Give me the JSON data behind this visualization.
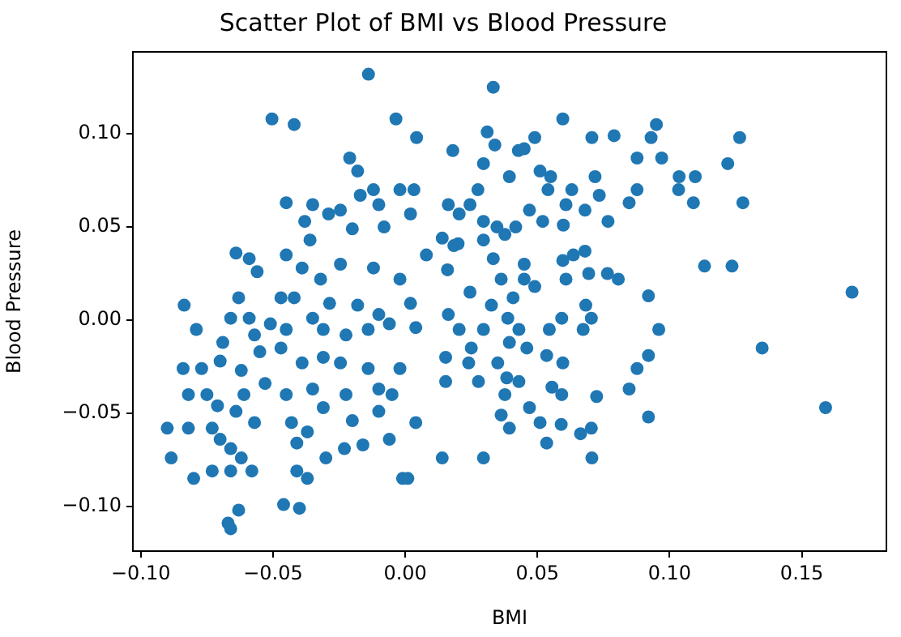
{
  "chart_data": {
    "type": "scatter",
    "title": "Scatter Plot of BMI vs Blood Pressure",
    "xlabel": "BMI",
    "ylabel": "Blood Pressure",
    "grid": false,
    "legend": false,
    "marker": "circle",
    "xlim": [
      -0.103,
      0.182
    ],
    "ylim": [
      -0.124,
      0.144
    ],
    "xticks": [
      {
        "value": -0.1,
        "label": "−0.10"
      },
      {
        "value": -0.05,
        "label": "−0.05"
      },
      {
        "value": 0,
        "label": "0.00"
      },
      {
        "value": 0.05,
        "label": "0.05"
      },
      {
        "value": 0.1,
        "label": "0.10"
      },
      {
        "value": 0.15,
        "label": "0.15"
      }
    ],
    "yticks": [
      {
        "value": -0.1,
        "label": "−0.10"
      },
      {
        "value": -0.05,
        "label": "−0.05"
      },
      {
        "value": 0,
        "label": "0.00"
      },
      {
        "value": 0.05,
        "label": "0.05"
      },
      {
        "value": 0.1,
        "label": "0.10"
      }
    ],
    "series": [
      {
        "color": "#1f77b4",
        "x": [
          -0.0139,
          -0.0504,
          -0.042,
          -0.0035,
          0.0043,
          0.018,
          -0.021,
          -0.018,
          -0.017,
          -0.012,
          -0.045,
          -0.035,
          -0.029,
          -0.0245,
          -0.01,
          -0.002,
          0.0033,
          0.002,
          -0.008,
          -0.038,
          -0.02,
          -0.064,
          -0.059,
          -0.056,
          -0.045,
          -0.036,
          -0.039,
          -0.032,
          -0.0245,
          -0.012,
          -0.002,
          0.008,
          0.014,
          0.02,
          0.016,
          0.002,
          -0.0836,
          -0.063,
          -0.047,
          -0.042,
          -0.0286,
          -0.018,
          -0.01,
          -0.079,
          -0.066,
          -0.059,
          -0.051,
          -0.057,
          -0.045,
          -0.035,
          -0.031,
          -0.0224,
          -0.014,
          -0.006,
          0.004,
          -0.069,
          -0.07,
          -0.077,
          -0.084,
          -0.062,
          -0.055,
          -0.047,
          -0.039,
          -0.031,
          -0.0245,
          -0.014,
          -0.002,
          -0.082,
          -0.075,
          -0.071,
          -0.061,
          -0.053,
          -0.045,
          -0.035,
          -0.0224,
          -0.01,
          -0.005,
          -0.09,
          -0.082,
          -0.073,
          -0.064,
          -0.057,
          -0.043,
          -0.031,
          -0.02,
          -0.01,
          0.004,
          -0.0885,
          -0.07,
          -0.066,
          -0.062,
          -0.041,
          -0.037,
          -0.03,
          -0.023,
          -0.016,
          -0.006,
          -0.08,
          -0.073,
          -0.066,
          -0.058,
          -0.041,
          -0.037,
          -0.001,
          0.001,
          -0.063,
          -0.067,
          -0.066,
          -0.046,
          -0.04,
          0.014,
          0.0333,
          0.0596,
          0.031,
          0.0339,
          0.049,
          0.0706,
          0.079,
          0.095,
          0.093,
          0.0877,
          0.097,
          0.1265,
          0.122,
          0.1036,
          0.1097,
          0.1034,
          0.109,
          0.1277,
          0.0296,
          0.0428,
          0.045,
          0.0394,
          0.051,
          0.055,
          0.054,
          0.063,
          0.0718,
          0.0734,
          0.0877,
          0.0847,
          0.0275,
          0.0245,
          0.0163,
          0.0204,
          0.047,
          0.0608,
          0.0598,
          0.052,
          0.068,
          0.0767,
          0.0296,
          0.0347,
          0.0418,
          0.0377,
          0.0296,
          0.0184,
          0.0333,
          0.0596,
          0.0636,
          0.068,
          0.045,
          0.1132,
          0.1236,
          0.0694,
          0.0765,
          0.0806,
          0.0363,
          0.045,
          0.0608,
          0.049,
          0.0245,
          0.169,
          0.092,
          0.0408,
          0.0326,
          0.0683,
          0.0163,
          0.0704,
          0.0388,
          0.0592,
          0.0959,
          0.0673,
          0.0545,
          0.0296,
          0.0204,
          0.043,
          0.0394,
          0.046,
          0.025,
          0.135,
          0.0153,
          0.024,
          0.035,
          0.0535,
          0.0596,
          0.092,
          0.0877,
          0.0277,
          0.0153,
          0.0384,
          0.043,
          0.0555,
          0.0592,
          0.0724,
          0.0847,
          0.0377,
          0.159,
          0.0363,
          0.047,
          0.051,
          0.059,
          0.0704,
          0.0663,
          0.092,
          0.0394,
          0.0535,
          0.0296,
          0.0706
        ],
        "values": [
          0.132,
          0.108,
          0.105,
          0.108,
          0.098,
          0.091,
          0.087,
          0.08,
          0.067,
          0.07,
          0.063,
          0.062,
          0.057,
          0.059,
          0.062,
          0.07,
          0.07,
          0.057,
          0.05,
          0.053,
          0.049,
          0.036,
          0.033,
          0.026,
          0.035,
          0.043,
          0.028,
          0.022,
          0.03,
          0.028,
          0.022,
          0.035,
          0.044,
          0.041,
          0.027,
          0.009,
          0.008,
          0.012,
          0.012,
          0.012,
          0.009,
          0.008,
          0.003,
          -0.005,
          0.001,
          0.001,
          -0.002,
          -0.008,
          -0.005,
          0.001,
          -0.005,
          -0.008,
          -0.005,
          -0.002,
          -0.004,
          -0.012,
          -0.022,
          -0.026,
          -0.026,
          -0.027,
          -0.017,
          -0.015,
          -0.023,
          -0.02,
          -0.023,
          -0.026,
          -0.026,
          -0.04,
          -0.04,
          -0.046,
          -0.04,
          -0.034,
          -0.04,
          -0.037,
          -0.04,
          -0.037,
          -0.04,
          -0.058,
          -0.058,
          -0.058,
          -0.049,
          -0.055,
          -0.055,
          -0.047,
          -0.054,
          -0.049,
          -0.055,
          -0.074,
          -0.064,
          -0.069,
          -0.074,
          -0.066,
          -0.06,
          -0.074,
          -0.069,
          -0.067,
          -0.064,
          -0.085,
          -0.081,
          -0.081,
          -0.081,
          -0.081,
          -0.085,
          -0.085,
          -0.085,
          -0.102,
          -0.109,
          -0.112,
          -0.099,
          -0.101,
          -0.074,
          0.125,
          0.108,
          0.101,
          0.094,
          0.098,
          0.098,
          0.099,
          0.105,
          0.098,
          0.087,
          0.087,
          0.098,
          0.084,
          0.077,
          0.077,
          0.07,
          0.063,
          0.063,
          0.084,
          0.091,
          0.092,
          0.077,
          0.08,
          0.077,
          0.07,
          0.07,
          0.077,
          0.067,
          0.07,
          0.063,
          0.07,
          0.062,
          0.062,
          0.057,
          0.059,
          0.062,
          0.051,
          0.053,
          0.059,
          0.053,
          0.053,
          0.05,
          0.05,
          0.046,
          0.043,
          0.04,
          0.033,
          0.032,
          0.035,
          0.037,
          0.03,
          0.029,
          0.029,
          0.025,
          0.025,
          0.022,
          0.022,
          0.022,
          0.022,
          0.018,
          0.015,
          0.015,
          0.013,
          0.012,
          0.008,
          0.008,
          0.003,
          0.001,
          0.001,
          0.001,
          -0.005,
          -0.005,
          -0.005,
          -0.005,
          -0.005,
          -0.005,
          -0.012,
          -0.015,
          -0.015,
          -0.015,
          -0.02,
          -0.023,
          -0.023,
          -0.019,
          -0.023,
          -0.019,
          -0.026,
          -0.033,
          -0.033,
          -0.031,
          -0.033,
          -0.036,
          -0.04,
          -0.041,
          -0.037,
          -0.04,
          -0.047,
          -0.051,
          -0.047,
          -0.055,
          -0.056,
          -0.058,
          -0.061,
          -0.052,
          -0.058,
          -0.066,
          -0.074,
          -0.074
        ]
      }
    ]
  }
}
